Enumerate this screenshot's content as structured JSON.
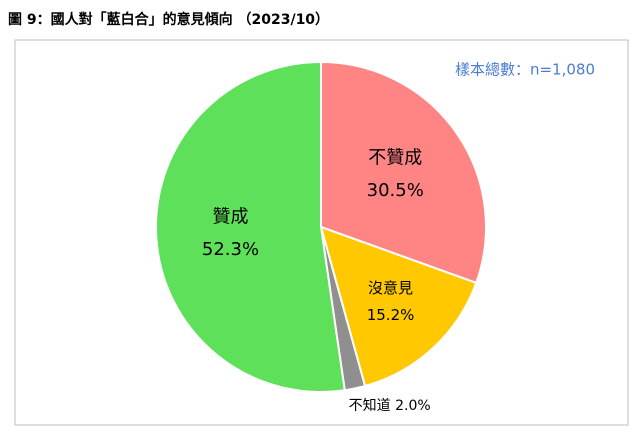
{
  "chart_data": {
    "type": "pie",
    "title": "圖 9：國人對「藍白合」的意見傾向 （2023/10）",
    "annotation": "樣本總數：n=1,080",
    "categories": [
      "不贊成",
      "沒意見",
      "不知道",
      "贊成"
    ],
    "values": [
      30.5,
      15.2,
      2.0,
      52.3
    ],
    "value_labels": [
      "30.5%",
      "15.2%",
      "2.0%",
      "52.3%"
    ],
    "colors": [
      "#ff8585",
      "#ffc800",
      "#8f8f8f",
      "#5ee05a"
    ]
  }
}
